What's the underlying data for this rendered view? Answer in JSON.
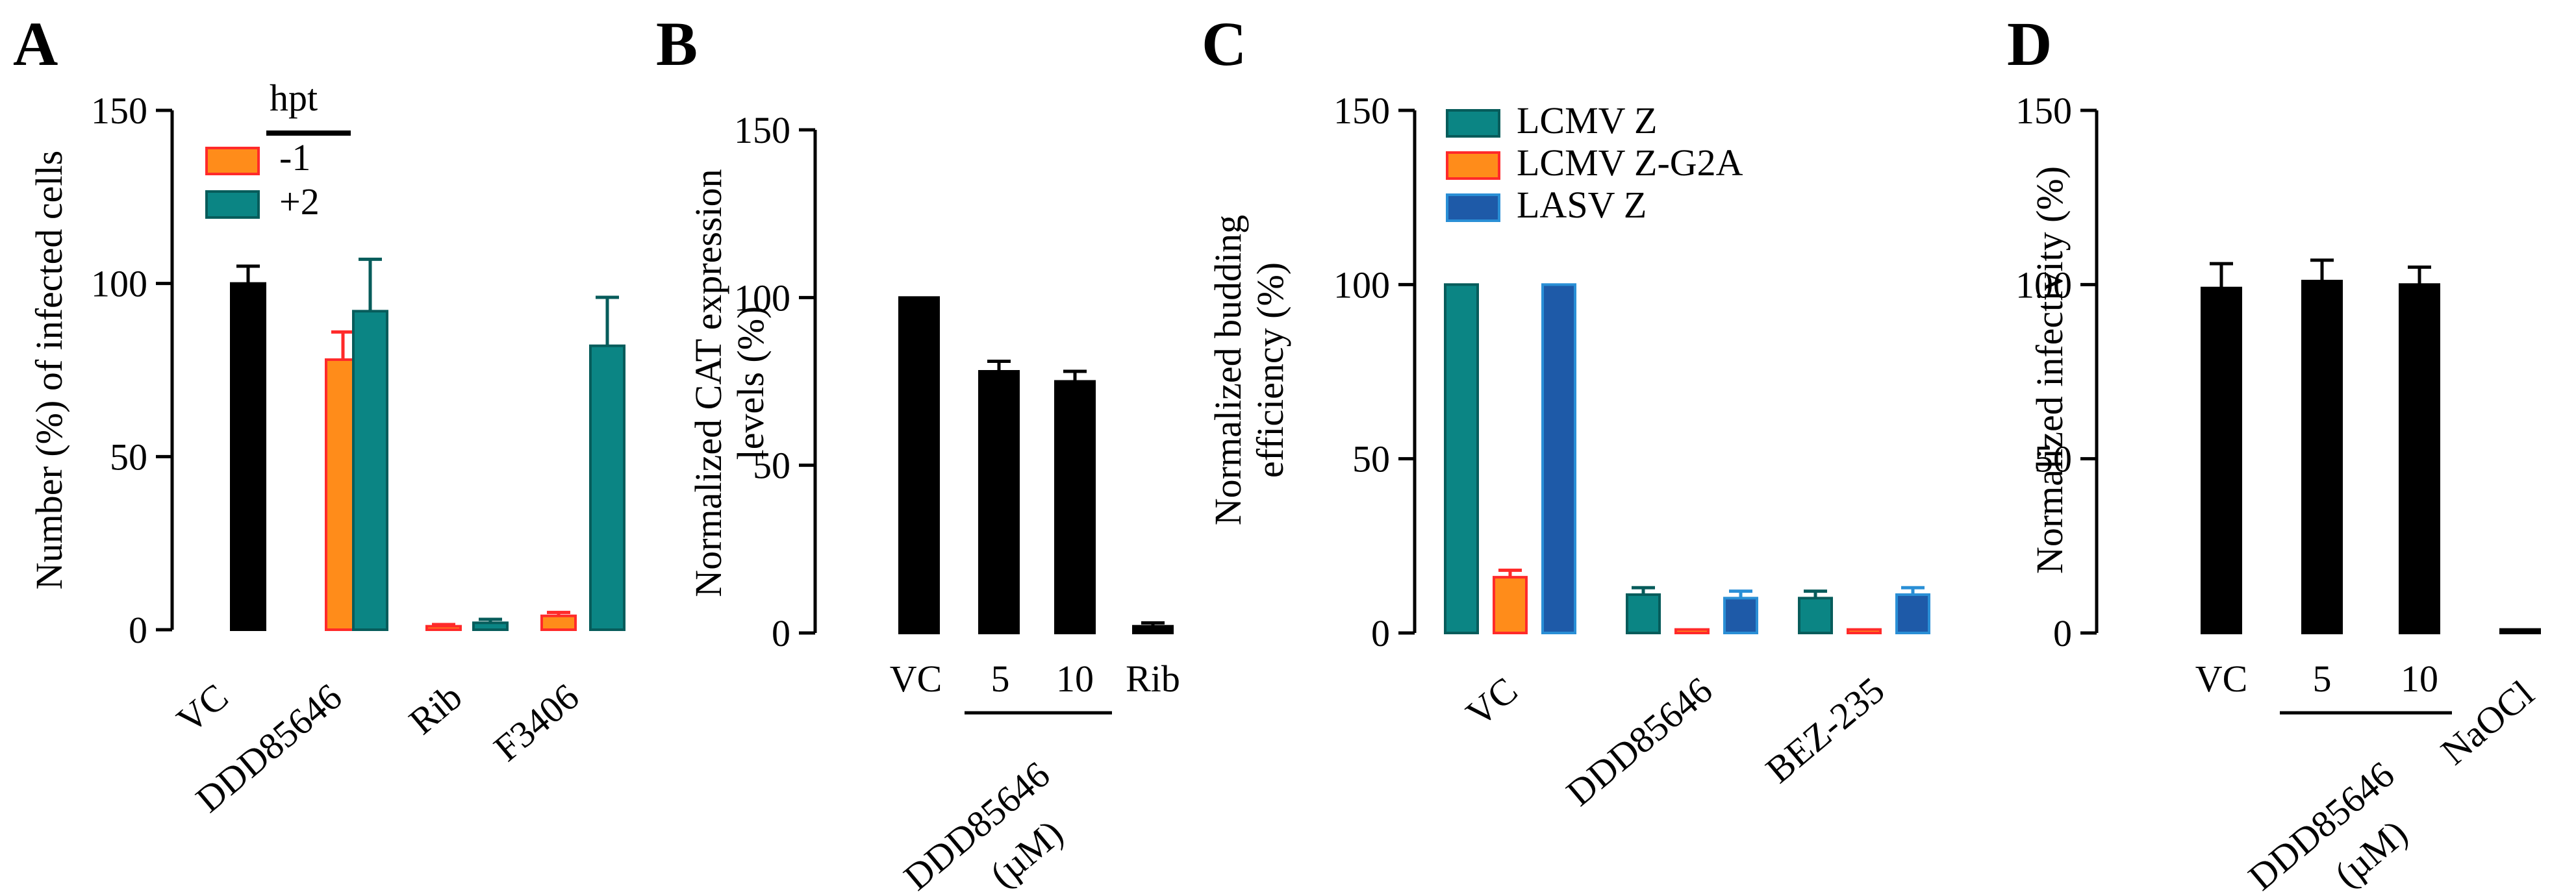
{
  "colors": {
    "black": "#000000",
    "orange": "#ff8c1a",
    "orange_edge": "#ff2a2a",
    "teal": "#0b8584",
    "teal_edge": "#075c5b",
    "blue": "#1e5aa8",
    "blue_edge": "#2a8fd6"
  },
  "chart_data": [
    {
      "panel": "A",
      "type": "bar",
      "ylabel": "Number (%) of infected cells",
      "ylim": [
        0,
        150
      ],
      "yticks": [
        "0",
        "50",
        "100",
        "150"
      ],
      "categories": [
        "VC",
        "DDD85646",
        "Rib",
        "F3406"
      ],
      "legend_title": "hpt",
      "legend": [
        "-1",
        "+2"
      ],
      "bars": [
        {
          "category": "VC",
          "series": "VC",
          "value": 100,
          "error": 5,
          "color": "black"
        },
        {
          "category": "DDD85646",
          "series": "-1",
          "value": 78,
          "error": 8,
          "color": "orange"
        },
        {
          "category": "DDD85646",
          "series": "+2",
          "value": 92,
          "error": 15,
          "color": "teal"
        },
        {
          "category": "Rib",
          "series": "-1",
          "value": 1,
          "error": 0.5,
          "color": "orange"
        },
        {
          "category": "Rib",
          "series": "+2",
          "value": 2,
          "error": 1,
          "color": "teal"
        },
        {
          "category": "F3406",
          "series": "-1",
          "value": 4,
          "error": 1,
          "color": "orange"
        },
        {
          "category": "F3406",
          "series": "+2",
          "value": 82,
          "error": 14,
          "color": "teal"
        }
      ]
    },
    {
      "panel": "B",
      "type": "bar",
      "ylabel_lines": [
        "Normalized CAT expression",
        "levels (%)"
      ],
      "ylim": [
        0,
        150
      ],
      "yticks": [
        "0",
        "50",
        "100",
        "150"
      ],
      "categories": [
        "VC",
        "5",
        "10",
        "Rib"
      ],
      "group_label_lines": [
        "DDD85646",
        "(µM)"
      ],
      "bars": [
        {
          "category": "VC",
          "value": 100,
          "error": 0,
          "color": "black"
        },
        {
          "category": "5",
          "value": 78,
          "error": 3,
          "color": "black"
        },
        {
          "category": "10",
          "value": 75,
          "error": 3,
          "color": "black"
        },
        {
          "category": "Rib",
          "value": 2,
          "error": 1,
          "color": "black"
        }
      ]
    },
    {
      "panel": "C",
      "type": "bar",
      "ylabel_lines": [
        "Normalized budding",
        "efficiency (%)"
      ],
      "ylim": [
        0,
        150
      ],
      "yticks": [
        "0",
        "50",
        "100",
        "150"
      ],
      "categories": [
        "VC",
        "DDD85646",
        "BEZ-235"
      ],
      "series": [
        {
          "name": "LCMV Z",
          "color": "teal",
          "values": [
            100,
            11,
            10
          ],
          "errors": [
            0,
            2,
            2
          ]
        },
        {
          "name": "LCMV Z-G2A",
          "color": "orange",
          "values": [
            16,
            1,
            1
          ],
          "errors": [
            2,
            0,
            0
          ]
        },
        {
          "name": "LASV Z",
          "color": "blue",
          "values": [
            100,
            10,
            11
          ],
          "errors": [
            0,
            2,
            2
          ]
        }
      ]
    },
    {
      "panel": "D",
      "type": "bar",
      "ylabel": "Normalized infectivity (%)",
      "ylim": [
        0,
        150
      ],
      "yticks": [
        "0",
        "50",
        "100",
        "150"
      ],
      "categories": [
        "VC",
        "5",
        "10",
        "NaOCl"
      ],
      "group_label_lines": [
        "DDD85646",
        "(µM)"
      ],
      "bars": [
        {
          "category": "VC",
          "value": 99,
          "error": 7,
          "color": "black"
        },
        {
          "category": "5",
          "value": 101,
          "error": 6,
          "color": "black"
        },
        {
          "category": "10",
          "value": 100,
          "error": 5,
          "color": "black"
        },
        {
          "category": "NaOCl",
          "value": 1,
          "error": 0,
          "color": "black"
        }
      ]
    }
  ]
}
